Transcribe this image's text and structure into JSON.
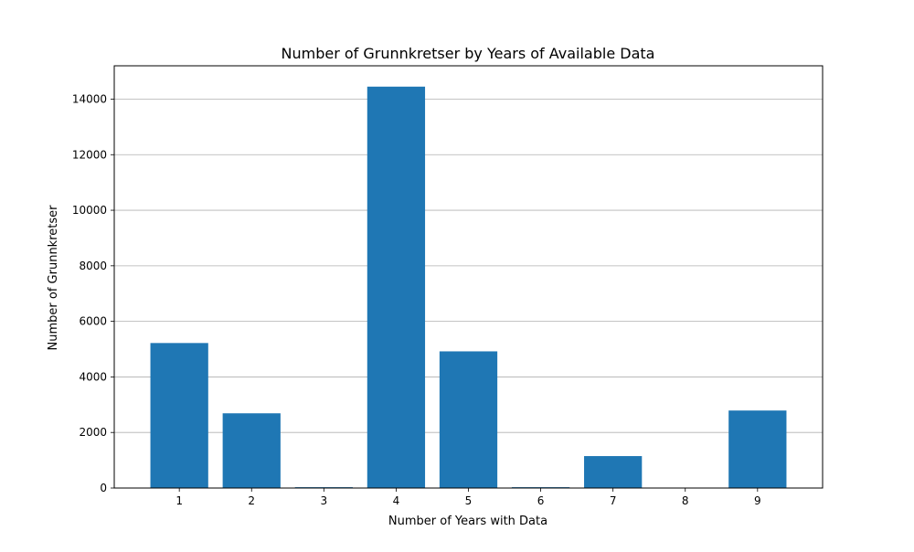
{
  "chart_data": {
    "type": "bar",
    "title": "Number of Grunnkretser by Years of Available Data",
    "xlabel": "Number of Years with Data",
    "ylabel": "Number of Grunnkretser",
    "categories": [
      "1",
      "2",
      "3",
      "4",
      "5",
      "6",
      "7",
      "8",
      "9"
    ],
    "values": [
      5220,
      2690,
      30,
      14450,
      4920,
      30,
      1150,
      5,
      2790
    ],
    "ylim": [
      0,
      15200
    ],
    "yticks": [
      0,
      2000,
      4000,
      6000,
      8000,
      10000,
      12000,
      14000
    ],
    "ytick_labels": [
      "0",
      "2000",
      "4000",
      "6000",
      "8000",
      "10000",
      "12000",
      "14000"
    ],
    "grid": "y",
    "bar_color": "#1f77b4",
    "grid_color": "#b0b0b0"
  }
}
